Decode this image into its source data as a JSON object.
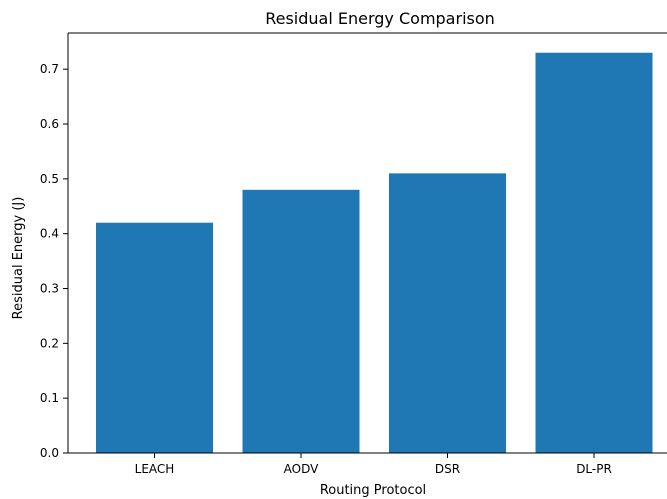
{
  "chart_data": {
    "type": "bar",
    "title": "Residual Energy Comparison",
    "xlabel": "Routing Protocol",
    "ylabel": "Residual Energy (J)",
    "categories": [
      "LEACH",
      "AODV",
      "DSR",
      "DL-PR"
    ],
    "values": [
      0.42,
      0.48,
      0.51,
      0.73
    ],
    "ylim": [
      0,
      0.766
    ],
    "yticks": [
      0.0,
      0.1,
      0.2,
      0.3,
      0.4,
      0.5,
      0.6,
      0.7
    ],
    "ytick_labels": [
      "0.0",
      "0.1",
      "0.2",
      "0.3",
      "0.4",
      "0.5",
      "0.6",
      "0.7"
    ],
    "grid": false,
    "bar_color": "#1f77b4"
  }
}
